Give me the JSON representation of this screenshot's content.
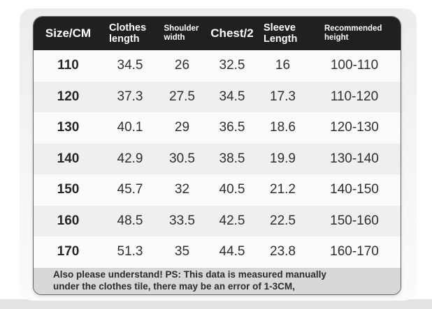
{
  "chart_data": {
    "type": "table",
    "columns": [
      "Size/CM",
      "Clothes length",
      "Shoulder width",
      "Chest/2",
      "Sleeve Length",
      "Recommended height"
    ],
    "rows": [
      [
        "110",
        "34.5",
        "26",
        "32.5",
        "16",
        "100-110"
      ],
      [
        "120",
        "37.3",
        "27.5",
        "34.5",
        "17.3",
        "110-120"
      ],
      [
        "130",
        "40.1",
        "29",
        "36.5",
        "18.6",
        "120-130"
      ],
      [
        "140",
        "42.9",
        "30.5",
        "38.5",
        "19.9",
        "130-140"
      ],
      [
        "150",
        "45.7",
        "32",
        "40.5",
        "21.2",
        "140-150"
      ],
      [
        "160",
        "48.5",
        "33.5",
        "42.5",
        "22.5",
        "150-160"
      ],
      [
        "170",
        "51.3",
        "35",
        "44.5",
        "23.8",
        "160-170"
      ]
    ],
    "note": "Also please understand! PS: This data is measured manually under the clothes tile, there may be an error of 1-3CM,",
    "layout": {
      "header_position": "top",
      "row_striping": true,
      "units": "CM"
    }
  },
  "colors": {
    "header_bg": "#202022",
    "header_text": "#ffffff",
    "row_bg": "#fbfbfb",
    "row_alt_bg": "#efefef",
    "footer_bg": "#d8d8d8",
    "body_text": "#2f2f2f",
    "border": "#636363",
    "backdrop": "#ececec"
  }
}
